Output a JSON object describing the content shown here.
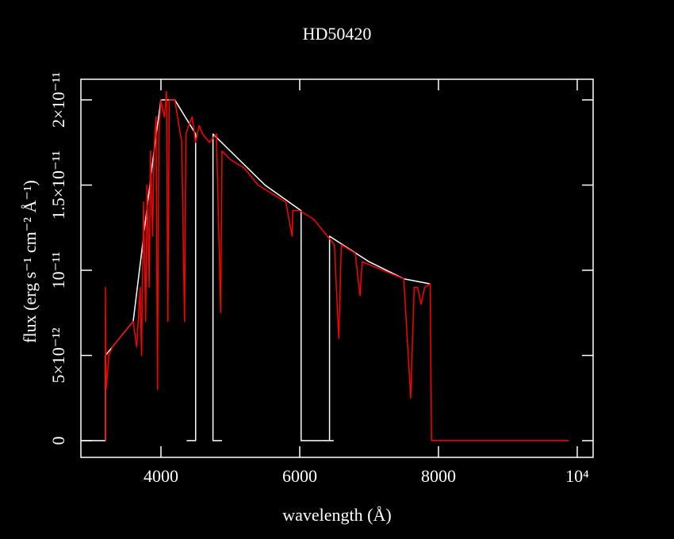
{
  "chart_data": {
    "type": "line",
    "title": "HD50420",
    "xlabel": "wavelength (Å)",
    "ylabel": "flux (erg s⁻¹ cm⁻² Å⁻¹)",
    "xlim": [
      2846,
      10229
    ],
    "ylim": [
      -9.8e-13,
      2.121e-11
    ],
    "xticks": [
      4000,
      6000,
      8000,
      {
        "value": 10000,
        "label": "10⁴"
      }
    ],
    "yticks": [
      0,
      {
        "value": 5e-12,
        "label": "5×10⁻¹²"
      },
      {
        "value": 1e-11,
        "label": "10⁻¹¹"
      },
      {
        "value": 1.5e-11,
        "label": "1.5×10⁻¹¹"
      },
      {
        "value": 2e-11,
        "label": "2×10⁻¹¹"
      }
    ],
    "series": [
      {
        "color": "#ffffff",
        "x": [
          2860,
          3200,
          3200,
          3600,
          3900,
          4000,
          4200,
          4500,
          4500,
          4370,
          4600,
          4880,
          4750,
          4750,
          5000,
          5500,
          6020,
          6020,
          6490,
          6460,
          6430,
          6430,
          7000,
          7500,
          7880
        ],
        "values": [
          0,
          0,
          5e-12,
          7e-12,
          1.7e-11,
          2e-11,
          2e-11,
          1.8e-11,
          0,
          0,
          null,
          0,
          0,
          1.8e-11,
          1.7e-11,
          1.5e-11,
          1.35e-11,
          0,
          0,
          null,
          0,
          1.2e-11,
          1.05e-11,
          9.5e-12,
          9.2e-12
        ]
      },
      {
        "color": "#ff0000",
        "x": [
          3200,
          3200,
          3210,
          3250,
          3300,
          3400,
          3500,
          3600,
          3650,
          3700,
          3720,
          3750,
          3780,
          3800,
          3830,
          3850,
          3880,
          3900,
          3930,
          3950,
          3970,
          4000,
          4050,
          4080,
          4100,
          4120,
          4200,
          4300,
          4340,
          4360,
          4400,
          4450,
          4500,
          4550,
          4600,
          4700,
          4800,
          4861,
          4880,
          5000,
          5200,
          5400,
          5600,
          5800,
          5890,
          5900,
          6000,
          6200,
          6400,
          6500,
          6563,
          6600,
          6800,
          6870,
          6900,
          7200,
          7500,
          7600,
          7650,
          7700,
          7750,
          7800,
          7880,
          7900,
          9880
        ],
        "values": [
          0,
          9e-12,
          3e-12,
          5e-12,
          5.5e-12,
          6e-12,
          6.5e-12,
          7e-12,
          5.5e-12,
          9e-12,
          5e-12,
          1.4e-11,
          7e-12,
          1.5e-11,
          9e-12,
          1.7e-11,
          1.2e-11,
          1.7e-11,
          1.9e-11,
          3e-12,
          1.8e-11,
          2e-11,
          1.9e-11,
          2.05e-11,
          7e-12,
          2e-11,
          2e-11,
          1.75e-11,
          7e-12,
          1.8e-11,
          1.85e-11,
          1.9e-11,
          1.75e-11,
          1.85e-11,
          1.8e-11,
          1.75e-11,
          1.8e-11,
          7.5e-12,
          1.7e-11,
          1.65e-11,
          1.6e-11,
          1.5e-11,
          1.45e-11,
          1.4e-11,
          1.2e-11,
          1.35e-11,
          1.35e-11,
          1.3e-11,
          1.2e-11,
          1.15e-11,
          6e-12,
          1.15e-11,
          1.1e-11,
          8.5e-12,
          1.05e-11,
          1e-11,
          9.5e-12,
          2.5e-12,
          9e-12,
          9e-12,
          8e-12,
          9e-12,
          9.2e-12,
          0,
          0
        ]
      }
    ]
  }
}
